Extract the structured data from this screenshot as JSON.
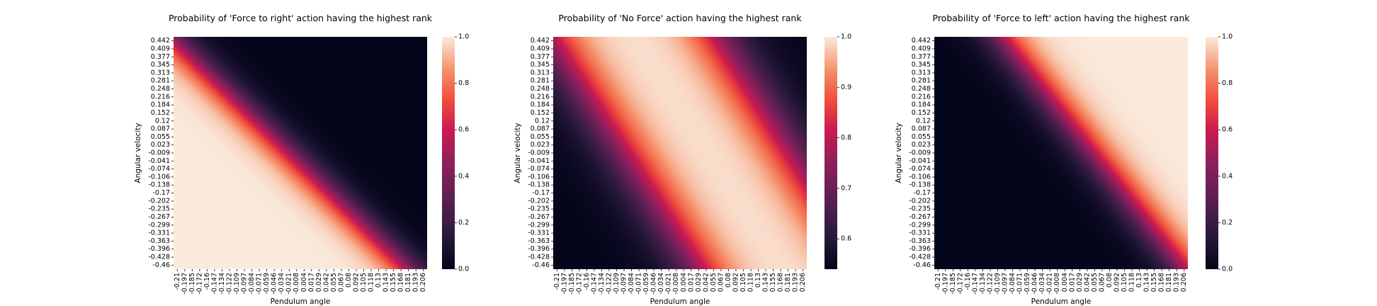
{
  "chart_data": [
    {
      "type": "heatmap",
      "title": "Probability of 'Force to right' action having the highest rank",
      "xlabel": "Pendulum angle",
      "ylabel": "Angular velocity",
      "x_ticks": [
        "-0.21",
        "-0.197",
        "-0.185",
        "-0.172",
        "-0.16",
        "-0.147",
        "-0.134",
        "-0.122",
        "-0.109",
        "-0.097",
        "-0.084",
        "-0.071",
        "-0.059",
        "-0.046",
        "-0.034",
        "-0.021",
        "-0.008",
        "0.004",
        "0.017",
        "0.029",
        "0.042",
        "0.055",
        "0.067",
        "0.08",
        "0.092",
        "0.105",
        "0.118",
        "0.13",
        "0.143",
        "0.155",
        "0.168",
        "0.181",
        "0.193",
        "0.206"
      ],
      "y_ticks": [
        "0.442",
        "0.409",
        "0.377",
        "0.345",
        "0.313",
        "0.281",
        "0.248",
        "0.216",
        "0.184",
        "0.152",
        "0.12",
        "0.087",
        "0.055",
        "0.023",
        "-0.009",
        "-0.041",
        "-0.074",
        "-0.106",
        "-0.138",
        "-0.17",
        "-0.202",
        "-0.235",
        "-0.267",
        "-0.299",
        "-0.331",
        "-0.363",
        "-0.396",
        "-0.428",
        "-0.46"
      ],
      "colorbar": {
        "min": 0.0,
        "max": 1.0,
        "ticks": [
          "0.0",
          "0.2",
          "0.4",
          "0.6",
          "0.8",
          "1.0"
        ]
      },
      "field": {
        "kind": "sigmoid_band",
        "direction": "decreasing",
        "boundary_top_angle": -0.215,
        "boundary_bottom_angle": 0.175,
        "width": 0.022,
        "low_value": 0.0,
        "high_value": 1.0
      }
    },
    {
      "type": "heatmap",
      "title": "Probability of 'No Force' action having the highest rank",
      "xlabel": "Pendulum angle",
      "ylabel": "Angular velocity",
      "x_ticks": [
        "-0.21",
        "-0.197",
        "-0.185",
        "-0.172",
        "-0.16",
        "-0.147",
        "-0.134",
        "-0.122",
        "-0.109",
        "-0.097",
        "-0.084",
        "-0.071",
        "-0.059",
        "-0.046",
        "-0.034",
        "-0.021",
        "-0.008",
        "0.004",
        "0.017",
        "0.029",
        "0.042",
        "0.055",
        "0.067",
        "0.08",
        "0.092",
        "0.105",
        "0.118",
        "0.13",
        "0.143",
        "0.155",
        "0.168",
        "0.181",
        "0.193",
        "0.206"
      ],
      "y_ticks": [
        "0.442",
        "0.409",
        "0.377",
        "0.345",
        "0.313",
        "0.281",
        "0.248",
        "0.216",
        "0.184",
        "0.152",
        "0.12",
        "0.087",
        "0.055",
        "0.023",
        "-0.009",
        "-0.041",
        "-0.074",
        "-0.106",
        "-0.138",
        "-0.17",
        "-0.202",
        "-0.235",
        "-0.267",
        "-0.299",
        "-0.331",
        "-0.363",
        "-0.396",
        "-0.428",
        "-0.46"
      ],
      "colorbar": {
        "min": 0.54,
        "max": 1.0,
        "ticks": [
          "0.6",
          "0.7",
          "0.8",
          "0.9",
          "1.0"
        ]
      },
      "field": {
        "kind": "two_tails",
        "low_value": 0.54,
        "high_value": 1.0,
        "lower_left_boundary_top_angle": -0.215,
        "lower_left_boundary_bottom_angle": 0.03,
        "upper_right_boundary_top_angle": 0.06,
        "upper_right_boundary_bottom_angle": 0.3,
        "width": 0.03
      }
    },
    {
      "type": "heatmap",
      "title": "Probability of 'Force to left' action having the highest rank",
      "xlabel": "Pendulum angle",
      "ylabel": "Angular velocity",
      "x_ticks": [
        "-0.21",
        "-0.197",
        "-0.185",
        "-0.172",
        "-0.16",
        "-0.147",
        "-0.134",
        "-0.122",
        "-0.109",
        "-0.097",
        "-0.084",
        "-0.071",
        "-0.059",
        "-0.046",
        "-0.034",
        "-0.021",
        "-0.008",
        "0.004",
        "0.017",
        "0.029",
        "0.042",
        "0.055",
        "0.067",
        "0.08",
        "0.092",
        "0.105",
        "0.118",
        "0.13",
        "0.143",
        "0.155",
        "0.168",
        "0.181",
        "0.193",
        "0.206"
      ],
      "y_ticks": [
        "0.442",
        "0.409",
        "0.377",
        "0.345",
        "0.313",
        "0.281",
        "0.248",
        "0.216",
        "0.184",
        "0.152",
        "0.12",
        "0.087",
        "0.055",
        "0.023",
        "-0.009",
        "-0.041",
        "-0.074",
        "-0.106",
        "-0.138",
        "-0.17",
        "-0.202",
        "-0.235",
        "-0.267",
        "-0.299",
        "-0.331",
        "-0.363",
        "-0.396",
        "-0.428",
        "-0.46"
      ],
      "colorbar": {
        "min": 0.0,
        "max": 1.0,
        "ticks": [
          "0.0",
          "0.2",
          "0.4",
          "0.6",
          "0.8",
          "1.0"
        ]
      },
      "field": {
        "kind": "sigmoid_band",
        "direction": "increasing",
        "boundary_top_angle": -0.1,
        "boundary_bottom_angle": 0.2,
        "width": 0.022,
        "low_value": 0.0,
        "high_value": 1.0
      }
    }
  ]
}
